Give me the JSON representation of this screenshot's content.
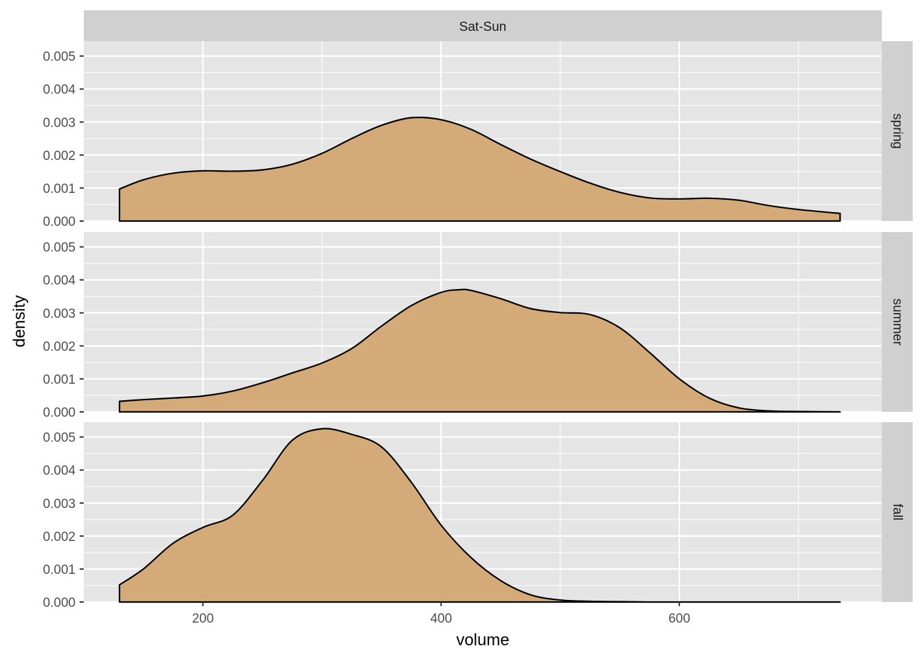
{
  "chart_data": {
    "type": "area",
    "subtype": "density",
    "facet_column": "Sat-Sun",
    "xlabel": "volume",
    "ylabel": "density",
    "xlim": [
      100,
      770
    ],
    "ylim": [
      0,
      0.00545
    ],
    "x_ticks": [
      "200",
      "400",
      "600"
    ],
    "x_tick_values": [
      200,
      400,
      600
    ],
    "y_ticks": [
      "0.000",
      "0.001",
      "0.002",
      "0.003",
      "0.004",
      "0.005"
    ],
    "y_tick_values": [
      0,
      0.001,
      0.002,
      0.003,
      0.004,
      0.005
    ],
    "grid": true,
    "colors": {
      "fill": "#d4aa78",
      "line": "#000000",
      "panel": "#e5e5e5",
      "strip": "#d0d0d0",
      "grid": "#ffffff"
    },
    "panels": [
      {
        "label": "spring",
        "x": [
          130,
          150,
          175,
          200,
          225,
          250,
          275,
          300,
          325,
          350,
          375,
          400,
          425,
          450,
          475,
          500,
          525,
          550,
          575,
          600,
          625,
          650,
          675,
          700,
          735
        ],
        "y": [
          0.00097,
          0.00125,
          0.00145,
          0.00152,
          0.00151,
          0.00155,
          0.00172,
          0.00205,
          0.0025,
          0.0029,
          0.00313,
          0.00307,
          0.00278,
          0.00232,
          0.00188,
          0.0015,
          0.00115,
          0.00087,
          0.0007,
          0.00067,
          0.00069,
          0.00063,
          0.00047,
          0.00035,
          0.00023
        ]
      },
      {
        "label": "summer",
        "x": [
          130,
          150,
          175,
          200,
          225,
          250,
          275,
          300,
          325,
          350,
          375,
          400,
          415,
          425,
          450,
          475,
          500,
          525,
          550,
          575,
          600,
          625,
          650,
          675,
          700,
          735
        ],
        "y": [
          0.00032,
          0.00037,
          0.00042,
          0.00048,
          0.00063,
          0.00088,
          0.00118,
          0.00148,
          0.00192,
          0.0026,
          0.00322,
          0.00362,
          0.0037,
          0.00368,
          0.00343,
          0.00313,
          0.00301,
          0.00295,
          0.00255,
          0.0018,
          0.001,
          0.00042,
          0.00012,
          3e-05,
          1e-05,
          0.0
        ]
      },
      {
        "label": "fall",
        "x": [
          130,
          150,
          175,
          200,
          225,
          250,
          275,
          300,
          325,
          350,
          375,
          400,
          425,
          450,
          475,
          500,
          525,
          550,
          575,
          600,
          650,
          700,
          735
        ],
        "y": [
          0.00052,
          0.001,
          0.00178,
          0.00226,
          0.00263,
          0.00368,
          0.0049,
          0.00525,
          0.00508,
          0.0047,
          0.00363,
          0.00233,
          0.00135,
          0.00065,
          0.00022,
          6e-05,
          2e-05,
          1e-05,
          0.0,
          0.0,
          0.0,
          0.0,
          0.0
        ]
      }
    ]
  }
}
